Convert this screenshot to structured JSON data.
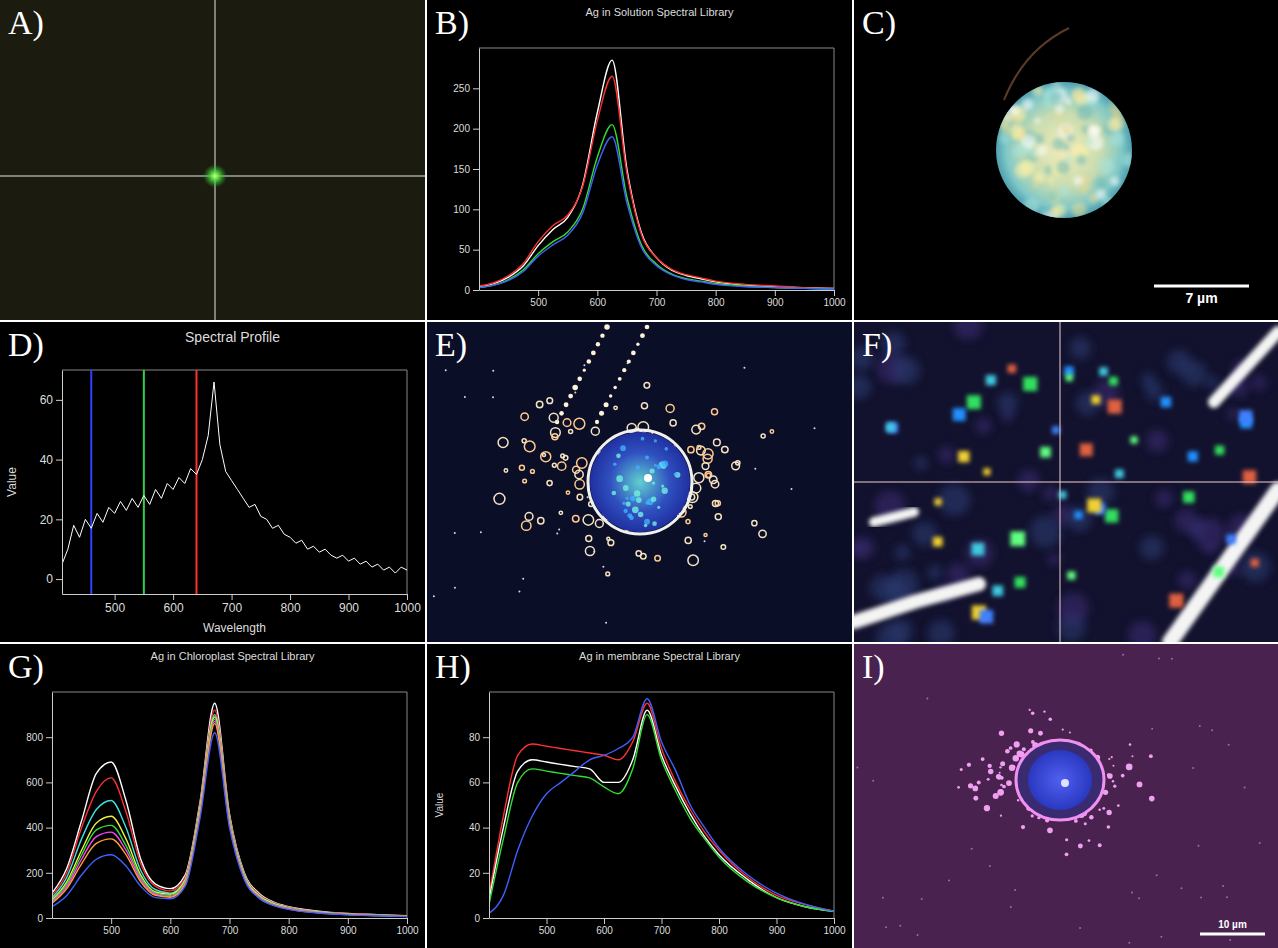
{
  "chart_data": [
    {
      "label": "A)",
      "type": "image"
    },
    {
      "label": "B)",
      "type": "line",
      "title": "Ag in Solution Spectral Library",
      "x": [
        400,
        425,
        450,
        475,
        500,
        525,
        550,
        575,
        600,
        625,
        650,
        675,
        700,
        725,
        750,
        775,
        800,
        850,
        900,
        950,
        1000
      ],
      "xlim": [
        400,
        1000
      ],
      "xticks": [
        500,
        600,
        700,
        800,
        900,
        1000
      ],
      "ylim": [
        0,
        300
      ],
      "yticks": [
        0,
        50,
        100,
        150,
        200,
        250
      ],
      "series": [
        {
          "color": "#ffffff",
          "values": [
            4,
            8,
            16,
            30,
            55,
            75,
            90,
            130,
            220,
            285,
            150,
            70,
            40,
            25,
            18,
            14,
            10,
            6,
            4,
            3,
            2
          ]
        },
        {
          "color": "#ff3030",
          "values": [
            5,
            9,
            18,
            33,
            60,
            80,
            93,
            128,
            210,
            265,
            145,
            68,
            40,
            26,
            19,
            15,
            11,
            7,
            5,
            3,
            2
          ]
        },
        {
          "color": "#30e030",
          "values": [
            3,
            6,
            13,
            25,
            45,
            60,
            72,
            100,
            165,
            205,
            115,
            55,
            32,
            20,
            14,
            11,
            8,
            5,
            3,
            2,
            1
          ]
        },
        {
          "color": "#4060ff",
          "values": [
            3,
            6,
            12,
            23,
            42,
            56,
            68,
            95,
            155,
            190,
            108,
            52,
            30,
            19,
            13,
            10,
            7,
            4,
            3,
            2,
            1
          ]
        }
      ]
    },
    {
      "label": "C)",
      "type": "image",
      "scale_label": "7 µm"
    },
    {
      "label": "D)",
      "type": "line",
      "title": "Spectral Profile",
      "x_label": "Wavelength",
      "y_label": "Value",
      "x": [
        410,
        420,
        430,
        440,
        450,
        460,
        470,
        480,
        490,
        500,
        510,
        520,
        530,
        540,
        550,
        560,
        570,
        580,
        590,
        600,
        610,
        620,
        630,
        640,
        650,
        660,
        670,
        680,
        690,
        700,
        710,
        720,
        730,
        740,
        750,
        760,
        770,
        780,
        790,
        800,
        810,
        820,
        830,
        840,
        850,
        860,
        870,
        880,
        890,
        900,
        910,
        920,
        930,
        940,
        950,
        960,
        970,
        980,
        990,
        1000
      ],
      "xlim": [
        410,
        1000
      ],
      "xticks": [
        500,
        600,
        700,
        800,
        900,
        1000
      ],
      "ylim": [
        -5,
        70
      ],
      "yticks": [
        0,
        20,
        40,
        60
      ],
      "bands": [
        {
          "value": 460,
          "color": "#3040ff"
        },
        {
          "value": 550,
          "color": "#30d040"
        },
        {
          "value": 640,
          "color": "#ff3030"
        }
      ],
      "series": [
        {
          "color": "#ffffff",
          "values": [
            5,
            10,
            18,
            14,
            20,
            17,
            22,
            19,
            24,
            22,
            26,
            23,
            27,
            24,
            28,
            25,
            30,
            27,
            32,
            30,
            34,
            32,
            37,
            35,
            40,
            48,
            66,
            45,
            36,
            33,
            30,
            27,
            24,
            25,
            21,
            20,
            17,
            18,
            15,
            14,
            12,
            13,
            10,
            11,
            9,
            10,
            8,
            7,
            8,
            6,
            7,
            5,
            6,
            4,
            5,
            3,
            4,
            2,
            4,
            3
          ]
        }
      ]
    },
    {
      "label": "E)",
      "type": "image"
    },
    {
      "label": "F)",
      "type": "image"
    },
    {
      "label": "G)",
      "type": "line",
      "title": "Ag in Chloroplast Spectral Library",
      "x": [
        400,
        425,
        450,
        475,
        500,
        525,
        550,
        575,
        600,
        625,
        650,
        675,
        700,
        725,
        750,
        775,
        800,
        850,
        900,
        950,
        1000
      ],
      "xlim": [
        400,
        1000
      ],
      "xticks": [
        500,
        600,
        700,
        800,
        900,
        1000
      ],
      "ylim": [
        0,
        1000
      ],
      "yticks": [
        0,
        200,
        400,
        600,
        800
      ],
      "series": [
        {
          "color": "#ffffff",
          "values": [
            110,
            220,
            430,
            640,
            690,
            520,
            260,
            150,
            130,
            190,
            510,
            950,
            460,
            200,
            110,
            70,
            50,
            30,
            20,
            15,
            10
          ]
        },
        {
          "color": "#ff3030",
          "values": [
            100,
            200,
            400,
            560,
            620,
            470,
            240,
            140,
            120,
            180,
            500,
            920,
            450,
            195,
            105,
            68,
            48,
            28,
            19,
            14,
            9
          ]
        },
        {
          "color": "#40e0e0",
          "values": [
            90,
            180,
            350,
            480,
            520,
            400,
            210,
            125,
            110,
            170,
            490,
            900,
            440,
            190,
            100,
            65,
            46,
            27,
            18,
            13,
            9
          ]
        },
        {
          "color": "#f0f040",
          "values": [
            80,
            160,
            300,
            420,
            450,
            350,
            190,
            115,
            105,
            165,
            480,
            890,
            430,
            185,
            98,
            62,
            45,
            26,
            17,
            12,
            8
          ]
        },
        {
          "color": "#30e030",
          "values": [
            75,
            150,
            280,
            390,
            410,
            320,
            180,
            110,
            100,
            160,
            470,
            880,
            425,
            180,
            95,
            60,
            44,
            25,
            16,
            12,
            8
          ]
        },
        {
          "color": "#ff40ff",
          "values": [
            70,
            140,
            260,
            360,
            380,
            300,
            170,
            105,
            95,
            155,
            465,
            870,
            420,
            178,
            92,
            58,
            42,
            24,
            16,
            11,
            7
          ]
        },
        {
          "color": "#ffa030",
          "values": [
            65,
            130,
            240,
            330,
            350,
            280,
            160,
            100,
            92,
            150,
            460,
            860,
            415,
            175,
            90,
            56,
            40,
            23,
            15,
            11,
            7
          ]
        },
        {
          "color": "#4060ff",
          "values": [
            50,
            100,
            190,
            260,
            280,
            230,
            140,
            90,
            85,
            140,
            440,
            820,
            400,
            170,
            88,
            55,
            38,
            22,
            14,
            10,
            6
          ]
        }
      ]
    },
    {
      "label": "H)",
      "type": "line",
      "title": "Ag in membrane Spectral Library",
      "y_label": "Value",
      "x": [
        400,
        425,
        450,
        475,
        500,
        525,
        550,
        575,
        600,
        625,
        650,
        675,
        700,
        725,
        750,
        775,
        800,
        850,
        900,
        950,
        1000
      ],
      "xlim": [
        400,
        1000
      ],
      "xticks": [
        500,
        600,
        700,
        800,
        900,
        1000
      ],
      "ylim": [
        0,
        100
      ],
      "yticks": [
        0,
        20,
        40,
        60,
        80
      ],
      "series": [
        {
          "color": "#ff3030",
          "values": [
            10,
            45,
            72,
            77,
            76,
            75,
            74,
            73,
            72,
            70,
            78,
            95,
            75,
            60,
            48,
            38,
            30,
            18,
            10,
            6,
            3
          ]
        },
        {
          "color": "#ffffff",
          "values": [
            8,
            40,
            65,
            70,
            69,
            68,
            67,
            66,
            60,
            60,
            70,
            92,
            72,
            58,
            46,
            36,
            28,
            17,
            9,
            5,
            3
          ]
        },
        {
          "color": "#30e030",
          "values": [
            6,
            35,
            60,
            66,
            65,
            64,
            63,
            62,
            58,
            55,
            66,
            90,
            70,
            56,
            44,
            35,
            27,
            16,
            9,
            5,
            3
          ]
        },
        {
          "color": "#4060ff",
          "values": [
            2,
            10,
            30,
            45,
            55,
            60,
            65,
            70,
            72,
            75,
            80,
            97,
            78,
            65,
            50,
            40,
            31,
            19,
            11,
            6,
            3
          ]
        }
      ]
    },
    {
      "label": "I)",
      "type": "image",
      "scale_label": "10 µm"
    }
  ]
}
